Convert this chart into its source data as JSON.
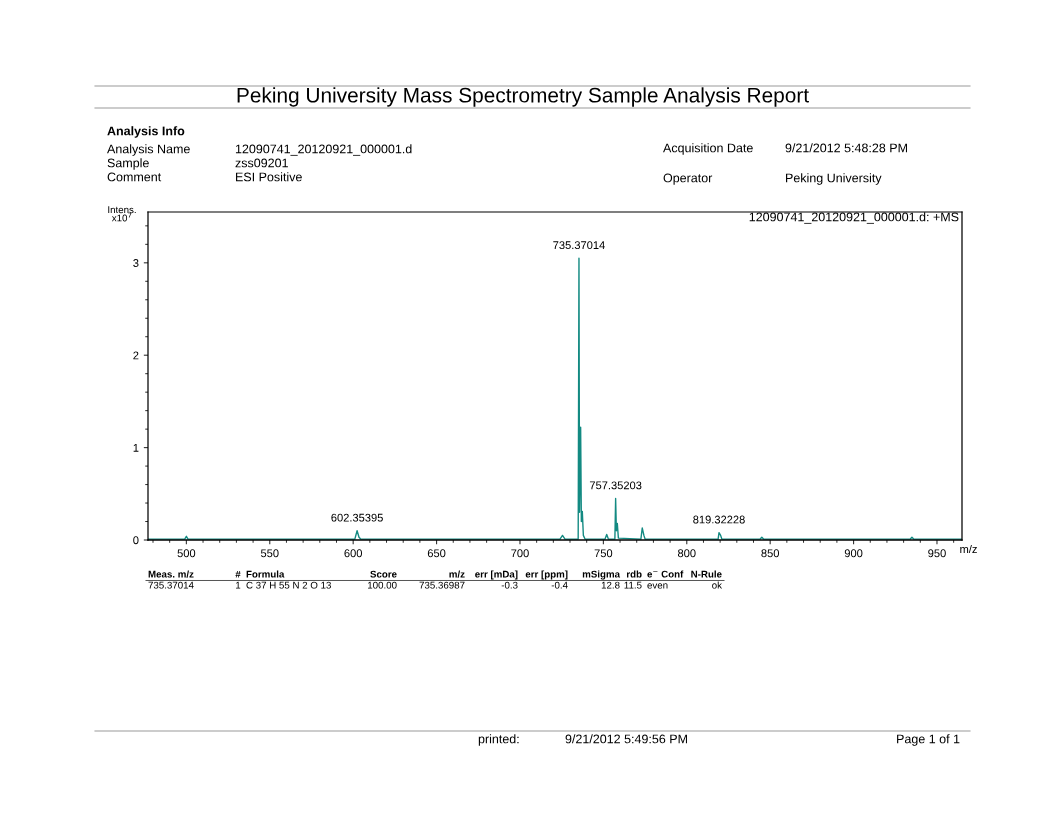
{
  "chart_data": {
    "type": "line",
    "title": "Peking University Mass Spectrometry Sample Analysis Report",
    "ylabel": "Intens.\nx10$^{7}$",
    "xlabel": "m/z",
    "xlim": [
      477,
      965
    ],
    "ylim": [
      0,
      3.55
    ],
    "xticks": [
      500,
      550,
      600,
      650,
      700,
      750,
      800,
      850,
      900,
      950
    ],
    "yticks": [
      0,
      1,
      2,
      3
    ],
    "grid": false,
    "marker": "none",
    "line_style": "solid",
    "series": [
      {
        "color": "#138a82",
        "x": [
          477,
          499,
          500,
          501,
          601,
          602.35,
          603.5,
          604.5,
          724,
          725.5,
          727,
          734.9,
          735.37,
          735.7,
          736.37,
          736.8,
          737.37,
          738,
          739,
          751,
          752,
          753,
          756.9,
          757.35,
          757.8,
          758.35,
          759,
          772.5,
          773.3,
          774.3,
          775,
          818.8,
          819.32,
          820.3,
          821,
          844,
          845,
          846,
          934,
          935,
          936,
          965
        ],
        "values": [
          0.01,
          0.01,
          0.04,
          0.01,
          0.01,
          0.1,
          0.03,
          0.01,
          0.01,
          0.05,
          0.01,
          0.01,
          3.05,
          0.3,
          1.22,
          0.2,
          0.31,
          0.05,
          0.01,
          0.01,
          0.06,
          0.01,
          0.01,
          0.45,
          0.1,
          0.18,
          0.02,
          0.01,
          0.13,
          0.05,
          0.01,
          0.01,
          0.08,
          0.05,
          0.01,
          0.01,
          0.03,
          0.01,
          0.01,
          0.03,
          0.01,
          0.01
        ]
      }
    ],
    "annotations": [
      "Analysis Info",
      "Analysis Name",
      "12090741_20120921_000001.d",
      "Sample",
      "zss09201",
      "Comment",
      "ESI Positive",
      "Acquisition Date",
      "9/21/2012 5:48:28 PM",
      "Operator",
      "Peking University",
      "12090741_20120921_000001.d: +MS",
      "Meas. m/z",
      "#",
      "Formula",
      "Score",
      "m/z",
      "err [mDa]",
      "err [ppm]",
      "mSigma",
      "rdb",
      "e$^{−}$ Conf",
      "N-Rule",
      "735.37014",
      "1",
      "C 37 H 55 N 2 O 13",
      "100.00",
      "735.36987",
      "-0.3",
      "-0.4",
      "12.8",
      "11.5",
      "even",
      "ok",
      "printed:",
      "9/21/2012 5:49:56 PM",
      "Page 1 of 1",
      {
        "text": "602.35395",
        "x": 602.35,
        "y": 0.1
      },
      {
        "text": "735.37014",
        "x": 735.37,
        "y": 3.05
      },
      {
        "text": "757.35203",
        "x": 757.35,
        "y": 0.45
      },
      {
        "text": "819.32228",
        "x": 819.32,
        "y": 0.08
      }
    ]
  }
}
